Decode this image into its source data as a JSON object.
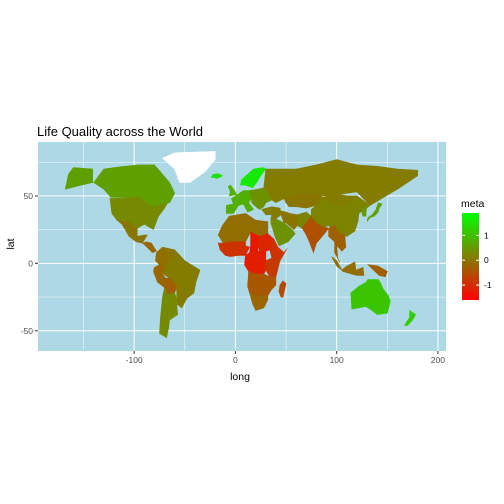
{
  "chart_data": {
    "type": "map",
    "title": "Life Quality across the World",
    "xlabel": "long",
    "ylabel": "lat",
    "xlim": [
      -195,
      208
    ],
    "ylim": [
      -65,
      90
    ],
    "x_ticks": [
      -100,
      0,
      100,
      200
    ],
    "y_ticks": [
      -50,
      0,
      50
    ],
    "x_tick_labels": [
      "-100",
      "0",
      "100",
      "200"
    ],
    "y_tick_labels": [
      "-50",
      "0",
      "50"
    ],
    "grid": true,
    "legend": {
      "title": "meta",
      "position": "right",
      "range": [
        -1.6,
        1.9
      ],
      "breaks": [
        1,
        0,
        -1
      ],
      "break_labels": [
        "1",
        "0",
        "-1"
      ],
      "low_color": "#ff0000",
      "high_color": "#00ff00"
    },
    "colors": {
      "panel": "#add8e6",
      "grid": "#ffffff",
      "no_data": "#ffffff"
    },
    "regions": [
      {
        "name": "Canada",
        "value": 0.6
      },
      {
        "name": "Alaska",
        "value": 0.6
      },
      {
        "name": "United States",
        "value": 0.3
      },
      {
        "name": "Mexico",
        "value": 0.0
      },
      {
        "name": "Central America",
        "value": -0.2
      },
      {
        "name": "Greenland",
        "value": null
      },
      {
        "name": "Colombia",
        "value": -0.1
      },
      {
        "name": "Venezuela",
        "value": 0.0
      },
      {
        "name": "Brazil",
        "value": 0.1
      },
      {
        "name": "Peru",
        "value": -0.2
      },
      {
        "name": "Bolivia",
        "value": -0.3
      },
      {
        "name": "Argentina",
        "value": 0.3
      },
      {
        "name": "Chile",
        "value": 0.3
      },
      {
        "name": "Iceland",
        "value": 1.5
      },
      {
        "name": "Scandinavia",
        "value": 1.6
      },
      {
        "name": "United Kingdom",
        "value": 0.8
      },
      {
        "name": "Western Europe",
        "value": 0.8
      },
      {
        "name": "Eastern Europe",
        "value": 0.4
      },
      {
        "name": "Russia",
        "value": 0.1
      },
      {
        "name": "Kazakhstan",
        "value": 0.0
      },
      {
        "name": "Middle East",
        "value": 0.1
      },
      {
        "name": "Saudi Arabia",
        "value": 0.4
      },
      {
        "name": "Iran",
        "value": 0.0
      },
      {
        "name": "Afghanistan",
        "value": 0.2
      },
      {
        "name": "India",
        "value": -0.5
      },
      {
        "name": "China",
        "value": 0.2
      },
      {
        "name": "Mongolia",
        "value": 0.1
      },
      {
        "name": "Southeast Asia",
        "value": -0.3
      },
      {
        "name": "Japan",
        "value": 0.6
      },
      {
        "name": "Korea",
        "value": 0.5
      },
      {
        "name": "Indonesia",
        "value": -0.1
      },
      {
        "name": "Papua New Guinea",
        "value": -0.3
      },
      {
        "name": "Australia",
        "value": 1.1
      },
      {
        "name": "New Zealand",
        "value": 1.2
      },
      {
        "name": "North Africa",
        "value": -0.1
      },
      {
        "name": "West Africa",
        "value": -0.9
      },
      {
        "name": "Nigeria",
        "value": -1.0
      },
      {
        "name": "Chad",
        "value": -1.3
      },
      {
        "name": "Sudan",
        "value": -1.1
      },
      {
        "name": "Ethiopia",
        "value": -0.9
      },
      {
        "name": "Central Africa",
        "value": -1.2
      },
      {
        "name": "East Africa",
        "value": -0.8
      },
      {
        "name": "Southern Africa",
        "value": -0.4
      },
      {
        "name": "South Africa",
        "value": -0.2
      },
      {
        "name": "Madagascar",
        "value": -0.6
      }
    ]
  }
}
